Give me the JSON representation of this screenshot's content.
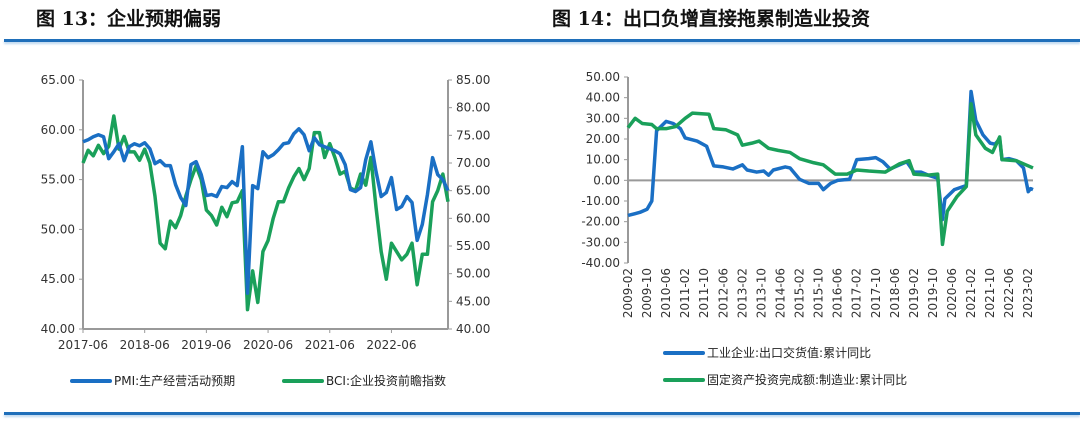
{
  "left": {
    "title": "图 13：企业预期偏弱"
  },
  "right": {
    "title": "图 14：出口负增直接拖累制造业投资"
  },
  "colors": {
    "blue": "#1a6fc4",
    "green": "#1aa05a",
    "rule": "#1f6fba"
  },
  "chart_data": [
    {
      "type": "line",
      "title": "图 13：企业预期偏弱",
      "grid": false,
      "legend": "bottom",
      "x_start": "2017-06",
      "x_end": "2023-05",
      "xticks": [
        "2017-06",
        "2018-06",
        "2019-06",
        "2020-06",
        "2021-06",
        "2022-06"
      ],
      "ylim_left": [
        40,
        65
      ],
      "yticks_left": [
        "40.00",
        "45.00",
        "50.00",
        "55.00",
        "60.00",
        "65.00"
      ],
      "ylim_right": [
        40,
        85
      ],
      "yticks_right": [
        "40.00",
        "45.00",
        "50.00",
        "55.00",
        "60.00",
        "65.00",
        "70.00",
        "75.00",
        "80.00",
        "85.00"
      ],
      "series": [
        {
          "name": "PMI:生产经营活动预期",
          "axis": "left",
          "color": "#1a6fc4",
          "values": [
            58.8,
            59.0,
            59.3,
            59.5,
            59.3,
            57.1,
            57.8,
            58.6,
            56.9,
            58.3,
            58.6,
            58.4,
            58.7,
            58.1,
            56.6,
            56.9,
            56.4,
            56.4,
            54.5,
            53.2,
            52.4,
            56.5,
            56.8,
            55.5,
            53.4,
            53.5,
            53.3,
            54.3,
            54.2,
            54.8,
            54.4,
            58.3,
            43.6,
            54.4,
            54.1,
            57.8,
            57.2,
            57.5,
            58.0,
            58.6,
            58.7,
            59.6,
            60.1,
            59.5,
            57.9,
            59.2,
            58.5,
            58.3,
            58.1,
            57.9,
            57.6,
            56.5,
            54.0,
            53.8,
            54.2,
            57.0,
            58.8,
            55.8,
            53.3,
            53.7,
            55.2,
            52.0,
            52.3,
            53.3,
            52.7,
            48.9,
            50.5,
            53.5,
            57.2,
            55.5,
            55.0,
            53.9
          ]
        },
        {
          "name": "BCI:企业投资前瞻指数",
          "axis": "right",
          "color": "#1aa05a",
          "values": [
            70.0,
            72.3,
            71.3,
            73.2,
            71.7,
            73.0,
            78.5,
            72.5,
            74.8,
            72.0,
            72.0,
            70.5,
            72.5,
            70.0,
            64.0,
            55.5,
            54.5,
            59.5,
            58.3,
            60.5,
            64.0,
            67.0,
            69.5,
            67.0,
            61.5,
            60.5,
            58.8,
            62.0,
            60.3,
            62.8,
            63.0,
            65.0,
            43.5,
            50.5,
            44.8,
            54.0,
            56.0,
            60.0,
            63.0,
            63.0,
            65.5,
            67.5,
            69.0,
            67.0,
            69.0,
            75.5,
            75.5,
            71.0,
            73.5,
            71.0,
            68.0,
            68.5,
            65.5,
            65.0,
            68.0,
            66.0,
            71.0,
            62.0,
            54.0,
            49.0,
            55.5,
            54.0,
            52.5,
            53.5,
            55.5,
            48.0,
            53.5,
            53.5,
            63.0,
            65.0,
            68.0,
            63.0
          ]
        }
      ]
    },
    {
      "type": "line",
      "title": "图 14：出口负增直接拖累制造业投资",
      "grid": false,
      "legend": "bottom",
      "x_start": "2009-02",
      "x_end": "2023-04",
      "xticks": [
        "2009-02",
        "2009-10",
        "2010-06",
        "2011-02",
        "2011-10",
        "2012-06",
        "2013-02",
        "2013-10",
        "2014-06",
        "2015-02",
        "2015-10",
        "2016-06",
        "2017-02",
        "2017-10",
        "2018-06",
        "2019-02",
        "2019-10",
        "2020-06",
        "2021-02",
        "2021-10",
        "2022-06",
        "2023-02"
      ],
      "ylim": [
        -40,
        50
      ],
      "yticks": [
        "-40.00",
        "-30.00",
        "-20.00",
        "-10.00",
        "0.00",
        "10.00",
        "20.00",
        "30.00",
        "40.00",
        "50.00"
      ],
      "series": [
        {
          "name": "工业企业:出口交货值:累计同比",
          "color": "#1a6fc4",
          "points": [
            [
              "2009-02",
              -17
            ],
            [
              "2009-07",
              -15.5
            ],
            [
              "2009-10",
              -14
            ],
            [
              "2009-12",
              -10
            ],
            [
              "2010-02",
              24
            ],
            [
              "2010-06",
              28.5
            ],
            [
              "2010-09",
              27.5
            ],
            [
              "2010-12",
              25
            ],
            [
              "2011-02",
              20.5
            ],
            [
              "2011-07",
              19
            ],
            [
              "2011-11",
              16.5
            ],
            [
              "2012-02",
              7
            ],
            [
              "2012-06",
              6.5
            ],
            [
              "2012-10",
              5.5
            ],
            [
              "2013-02",
              7.5
            ],
            [
              "2013-04",
              5
            ],
            [
              "2013-08",
              4
            ],
            [
              "2013-11",
              4.5
            ],
            [
              "2014-01",
              2.5
            ],
            [
              "2014-03",
              5
            ],
            [
              "2014-08",
              6.5
            ],
            [
              "2014-10",
              6
            ],
            [
              "2015-02",
              0.5
            ],
            [
              "2015-06",
              -1.5
            ],
            [
              "2015-10",
              -1.5
            ],
            [
              "2015-12",
              -4.5
            ],
            [
              "2016-03",
              -1.5
            ],
            [
              "2016-06",
              0
            ],
            [
              "2016-11",
              0.5
            ],
            [
              "2017-02",
              10
            ],
            [
              "2017-07",
              10.5
            ],
            [
              "2017-10",
              11
            ],
            [
              "2018-01",
              9
            ],
            [
              "2018-04",
              5.5
            ],
            [
              "2018-07",
              7
            ],
            [
              "2018-11",
              9
            ],
            [
              "2019-02",
              4
            ],
            [
              "2019-05",
              4
            ],
            [
              "2019-08",
              2.5
            ],
            [
              "2019-12",
              1
            ],
            [
              "2020-02",
              -19
            ],
            [
              "2020-03",
              -9
            ],
            [
              "2020-07",
              -4.5
            ],
            [
              "2020-12",
              -2.5
            ],
            [
              "2021-02",
              43
            ],
            [
              "2021-04",
              29
            ],
            [
              "2021-07",
              22
            ],
            [
              "2021-10",
              18
            ],
            [
              "2021-12",
              17.5
            ],
            [
              "2022-02",
              20
            ],
            [
              "2022-03",
              10
            ],
            [
              "2022-06",
              10.5
            ],
            [
              "2022-09",
              9.5
            ],
            [
              "2022-12",
              6
            ],
            [
              "2023-02",
              -5.5
            ],
            [
              "2023-03",
              -4
            ],
            [
              "2023-04",
              -4.5
            ]
          ]
        },
        {
          "name": "固定资产投资完成额:制造业:累计同比",
          "color": "#1aa05a",
          "points": [
            [
              "2009-02",
              25.5
            ],
            [
              "2009-05",
              30
            ],
            [
              "2009-08",
              27.5
            ],
            [
              "2009-12",
              27
            ],
            [
              "2010-02",
              25
            ],
            [
              "2010-06",
              25
            ],
            [
              "2010-10",
              26
            ],
            [
              "2011-02",
              30
            ],
            [
              "2011-05",
              32.5
            ],
            [
              "2011-12",
              32
            ],
            [
              "2012-02",
              25
            ],
            [
              "2012-07",
              24.5
            ],
            [
              "2012-12",
              22
            ],
            [
              "2013-02",
              17
            ],
            [
              "2013-06",
              18
            ],
            [
              "2013-09",
              19
            ],
            [
              "2014-01",
              15.5
            ],
            [
              "2014-05",
              14.5
            ],
            [
              "2014-10",
              13.5
            ],
            [
              "2015-02",
              10.5
            ],
            [
              "2015-08",
              8.5
            ],
            [
              "2015-12",
              7.5
            ],
            [
              "2016-05",
              3
            ],
            [
              "2016-10",
              3
            ],
            [
              "2017-02",
              5
            ],
            [
              "2017-07",
              4.5
            ],
            [
              "2018-02",
              4
            ],
            [
              "2018-08",
              8
            ],
            [
              "2018-12",
              9.5
            ],
            [
              "2019-02",
              3
            ],
            [
              "2019-08",
              2.5
            ],
            [
              "2019-12",
              3
            ],
            [
              "2020-02",
              -31
            ],
            [
              "2020-04",
              -15
            ],
            [
              "2020-08",
              -8
            ],
            [
              "2020-12",
              -3
            ],
            [
              "2021-02",
              37
            ],
            [
              "2021-04",
              22
            ],
            [
              "2021-08",
              15.5
            ],
            [
              "2021-11",
              13.5
            ],
            [
              "2022-02",
              21
            ],
            [
              "2022-03",
              10
            ],
            [
              "2022-09",
              9.5
            ],
            [
              "2022-12",
              8
            ],
            [
              "2023-04",
              6
            ]
          ]
        }
      ]
    }
  ]
}
